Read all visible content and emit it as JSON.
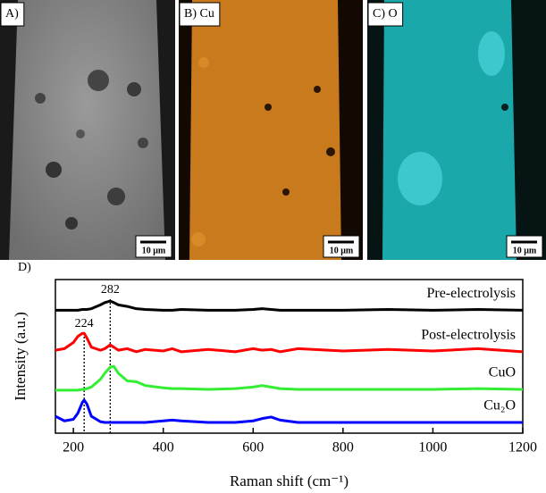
{
  "panels": [
    {
      "label": "A)",
      "scale": "10 μm"
    },
    {
      "label": "B) Cu",
      "scale": "10 μm"
    },
    {
      "label": "C) O",
      "scale": "10 μm"
    }
  ],
  "chart_data": {
    "type": "line",
    "panel_label": "D)",
    "x_label": "Raman shift (cm⁻¹)",
    "y_label": "Intensity (a.u.)",
    "x": [
      160,
      180,
      200,
      210,
      220,
      224,
      230,
      240,
      260,
      270,
      282,
      290,
      300,
      320,
      340,
      360,
      400,
      420,
      440,
      500,
      560,
      600,
      620,
      640,
      660,
      700,
      800,
      900,
      1000,
      1100,
      1200
    ],
    "series": [
      {
        "name": "Pre-electrolysis",
        "color": "#000000",
        "values": [
          8.0,
          8.0,
          8.0,
          8.0,
          8.05,
          8.05,
          8.05,
          8.1,
          8.35,
          8.5,
          8.6,
          8.5,
          8.35,
          8.25,
          8.1,
          8.05,
          8.0,
          8.0,
          8.05,
          8.0,
          8.0,
          8.05,
          8.1,
          8.05,
          8.0,
          8.0,
          8.0,
          8.05,
          8.0,
          8.05,
          8.0
        ]
      },
      {
        "name": "Post-electrolysis",
        "color": "#ff0000",
        "values": [
          5.4,
          5.5,
          5.9,
          6.3,
          6.5,
          6.5,
          6.2,
          5.6,
          5.4,
          5.5,
          5.75,
          5.6,
          5.4,
          5.5,
          5.3,
          5.45,
          5.35,
          5.5,
          5.3,
          5.45,
          5.3,
          5.5,
          5.4,
          5.45,
          5.3,
          5.5,
          5.35,
          5.45,
          5.35,
          5.5,
          5.3
        ]
      },
      {
        "name": "CuO",
        "color": "#33ee33",
        "values": [
          2.8,
          2.8,
          2.8,
          2.8,
          2.85,
          2.85,
          2.9,
          3.0,
          3.5,
          3.9,
          4.3,
          4.35,
          3.9,
          3.4,
          3.35,
          3.1,
          2.95,
          2.9,
          2.9,
          2.85,
          2.9,
          3.0,
          3.1,
          3.0,
          2.9,
          2.85,
          2.85,
          2.85,
          2.85,
          2.9,
          2.85
        ]
      },
      {
        "name": "Cu₂O",
        "color": "#0000ff",
        "values": [
          1.1,
          0.8,
          0.9,
          1.3,
          2.0,
          2.15,
          1.9,
          1.1,
          0.75,
          0.7,
          0.7,
          0.7,
          0.7,
          0.7,
          0.7,
          0.7,
          0.8,
          0.85,
          0.8,
          0.7,
          0.7,
          0.8,
          0.95,
          1.05,
          0.85,
          0.7,
          0.7,
          0.7,
          0.7,
          0.7,
          0.7
        ]
      }
    ],
    "peak_labels": [
      282,
      224
    ],
    "xlim": [
      160,
      1200
    ],
    "xticks": [
      200,
      400,
      600,
      800,
      1000,
      1200
    ],
    "ylim": [
      0,
      10
    ]
  }
}
